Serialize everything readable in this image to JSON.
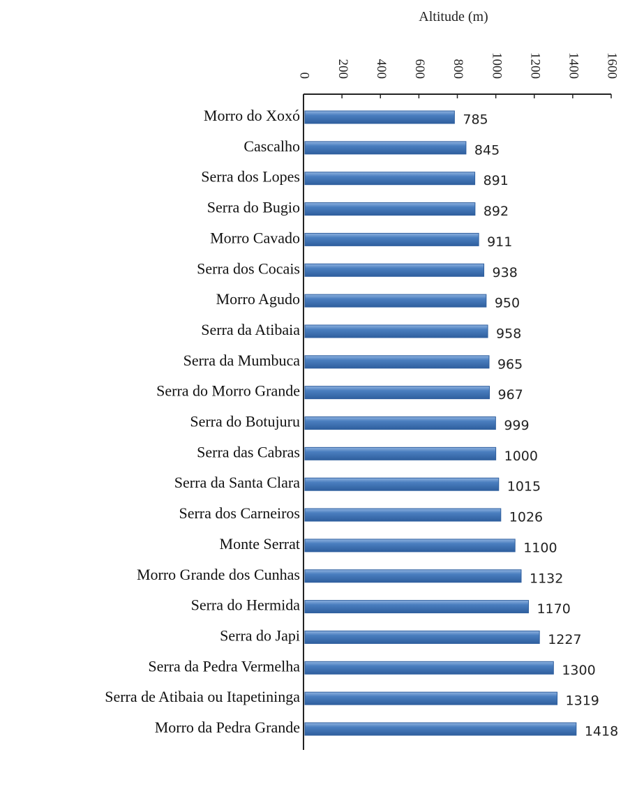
{
  "chart_data": {
    "type": "bar",
    "orientation": "horizontal",
    "x_label": "Altitude (m)",
    "categories": [
      "Morro do Xoxó",
      "Cascalho",
      "Serra dos Lopes",
      "Serra do Bugio",
      "Morro Cavado",
      "Serra dos Cocais",
      "Morro Agudo",
      "Serra da Atibaia",
      "Serra da Mumbuca",
      "Serra do Morro Grande",
      "Serra do Botujuru",
      "Serra das Cabras",
      "Serra da Santa Clara",
      "Serra dos Carneiros",
      "Monte Serrat",
      "Morro Grande dos Cunhas",
      "Serra do Hermida",
      "Serra do Japi",
      "Serra da Pedra Vermelha",
      "Serra de Atibaia ou Itapetininga",
      "Morro da Pedra Grande"
    ],
    "values": [
      785,
      845,
      891,
      892,
      911,
      938,
      950,
      958,
      965,
      967,
      999,
      1000,
      1015,
      1026,
      1100,
      1132,
      1170,
      1227,
      1300,
      1319,
      1418
    ],
    "color": "#4a7ebf",
    "xlim": [
      0,
      1600
    ],
    "xticks": [
      0,
      200,
      400,
      600,
      800,
      1000,
      1200,
      1400,
      1600
    ]
  }
}
